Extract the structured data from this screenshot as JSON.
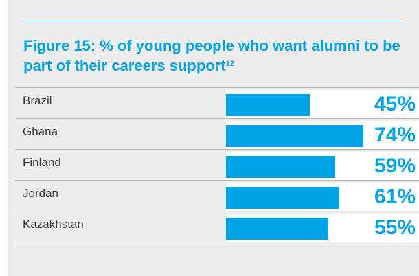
{
  "chart_data": {
    "type": "bar",
    "orientation": "horizontal",
    "title": "Figure 15: % of young people who want alumni to be part of their careers support",
    "title_footnote": "12",
    "categories": [
      "Brazil",
      "Ghana",
      "Finland",
      "Jordan",
      "Kazakhstan"
    ],
    "values": [
      45,
      74,
      59,
      61,
      55
    ],
    "labels": [
      "45%",
      "74%",
      "59%",
      "61%",
      "55%"
    ],
    "xlim": [
      0,
      74
    ],
    "colors": {
      "bar": "#00a4e4",
      "text": "#00a4e4",
      "background": "#ededed"
    }
  }
}
